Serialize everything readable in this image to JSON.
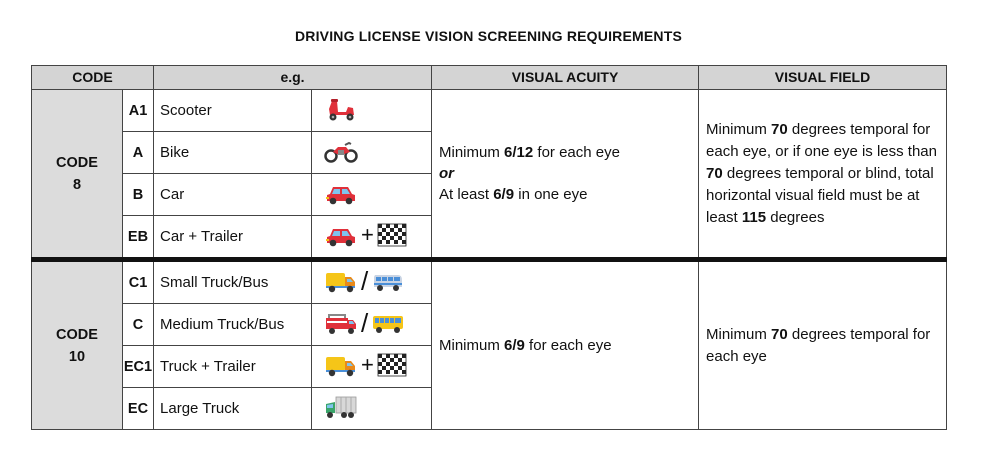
{
  "title": "DRIVING LICENSE VISION SCREENING REQUIREMENTS",
  "headers": {
    "code": "CODE",
    "eg": "e.g.",
    "acuity": "VISUAL ACUITY",
    "field": "VISUAL FIELD"
  },
  "groups": [
    {
      "label_line1": "CODE",
      "label_line2": "8",
      "rows": [
        {
          "code": "A1",
          "vehicle": "Scooter",
          "icons": [
            "scooter-icon"
          ]
        },
        {
          "code": "A",
          "vehicle": "Bike",
          "icons": [
            "motorcycle-icon"
          ]
        },
        {
          "code": "B",
          "vehicle": "Car",
          "icons": [
            "car-icon"
          ]
        },
        {
          "code": "EB",
          "vehicle": "Car + Trailer",
          "icons": [
            "car-icon",
            "plus-sign",
            "checkered-flag-icon"
          ]
        }
      ],
      "acuity": {
        "line1_prefix": "Minimum ",
        "line1_value": "6/12",
        "line1_suffix": " for each eye",
        "or": "or",
        "line2_prefix": "At least ",
        "line2_value": "6/9",
        "line2_suffix": " in one eye"
      },
      "field": {
        "p1": "Minimum ",
        "v1": "70",
        "p2": " degrees temporal for each eye, or if one eye is less than ",
        "v2": "70",
        "p3": " degrees temporal or blind, total horizontal visual field must be at least ",
        "v3": "115",
        "p4": " degrees"
      }
    },
    {
      "label_line1": "CODE",
      "label_line2": "10",
      "rows": [
        {
          "code": "C1",
          "vehicle": "Small Truck/Bus",
          "icons": [
            "delivery-truck-icon",
            "slash",
            "minibus-icon"
          ]
        },
        {
          "code": "C",
          "vehicle": "Medium Truck/Bus",
          "icons": [
            "fire-engine-icon",
            "slash",
            "bus-icon"
          ]
        },
        {
          "code": "EC1",
          "vehicle": "Truck + Trailer",
          "icons": [
            "delivery-truck-icon",
            "plus-sign",
            "checkered-flag-icon"
          ]
        },
        {
          "code": "EC",
          "vehicle": "Large Truck",
          "icons": [
            "lorry-icon"
          ]
        }
      ],
      "acuity": {
        "prefix": "Minimum ",
        "value": "6/9",
        "suffix": " for each eye"
      },
      "field": {
        "p1": "Minimum ",
        "v1": "70",
        "p2": " degrees temporal for each eye"
      }
    }
  ],
  "symbols": {
    "plus": "+",
    "slash": "/"
  },
  "colors": {
    "header_bg": "#d4d4d4",
    "group_bg": "#dcdcdc",
    "separator": "#111111",
    "red": "#e0303a",
    "yellow": "#f5c518",
    "blue": "#4a8fd8",
    "green": "#3aa56a"
  }
}
